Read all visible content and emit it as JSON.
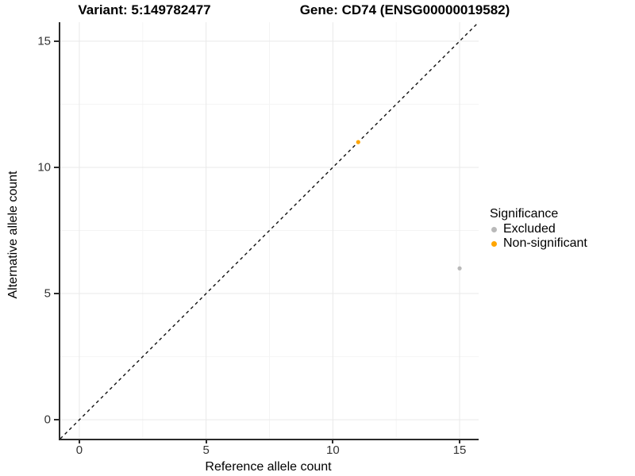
{
  "titles": {
    "variant": "Variant: 5:149782477",
    "gene": "Gene: CD74 (ENSG00000019582)"
  },
  "axes": {
    "x_label": "Reference allele count",
    "y_label": "Alternative allele count",
    "x_ticks": [
      "0",
      "5",
      "10",
      "15"
    ],
    "y_ticks": [
      "0",
      "5",
      "10",
      "15"
    ]
  },
  "legend": {
    "title": "Significance",
    "items": [
      {
        "label": "Excluded",
        "color": "#b9b9b9"
      },
      {
        "label": "Non-significant",
        "color": "#ffa500"
      }
    ]
  },
  "chart_data": {
    "type": "scatter",
    "title": "Variant: 5:149782477   Gene: CD74 (ENSG00000019582)",
    "xlabel": "Reference allele count",
    "ylabel": "Alternative allele count",
    "xlim": [
      -0.75,
      15.75
    ],
    "ylim": [
      -0.75,
      15.75
    ],
    "x_tick_values": [
      0,
      5,
      10,
      15
    ],
    "y_tick_values": [
      0,
      5,
      10,
      15
    ],
    "grid": {
      "major": [
        0,
        5,
        10,
        15
      ],
      "minor": [
        2.5,
        7.5,
        12.5
      ],
      "major_color": "#e9e9e9",
      "minor_color": "#f4f4f4"
    },
    "identity_line": {
      "style": "dashed",
      "color": "#111111",
      "from": [
        -0.75,
        -0.75
      ],
      "to": [
        15.75,
        15.75
      ]
    },
    "series": [
      {
        "name": "Excluded",
        "color": "#b9b9b9",
        "points": [
          {
            "x": 15,
            "y": 6
          }
        ]
      },
      {
        "name": "Non-significant",
        "color": "#ffa500",
        "points": [
          {
            "x": 11,
            "y": 11
          }
        ]
      }
    ],
    "legend_title": "Significance",
    "legend_position": "right",
    "point_radius_px": 2.6
  }
}
